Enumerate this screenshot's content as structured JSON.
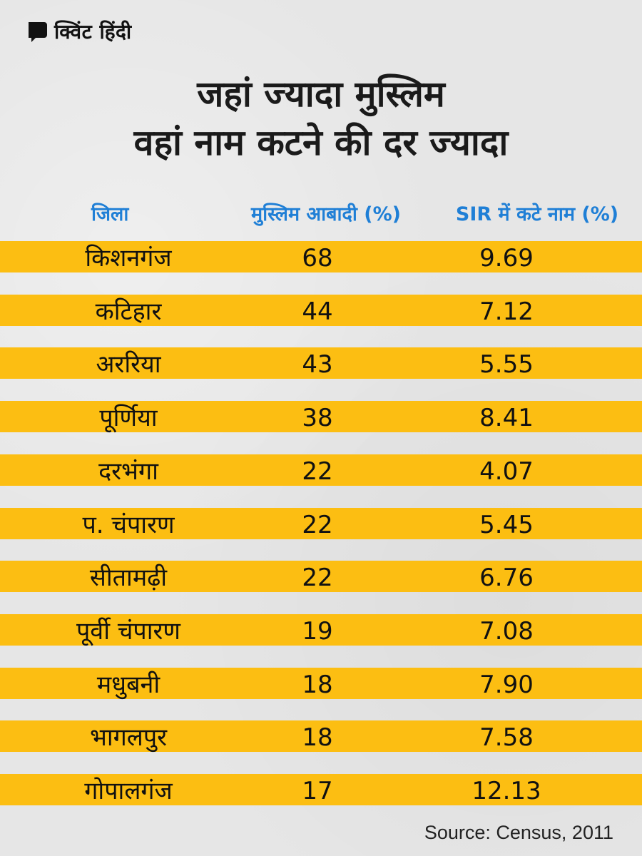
{
  "brand": {
    "logo_text": "क्विंट हिंदी",
    "logo_icon": "quint-q-mark-icon"
  },
  "title": {
    "line1": "जहां ज्यादा मुस्लिम",
    "line2": "वहां नाम कटने की दर ज्यादा"
  },
  "colors": {
    "row_band": "#fcbe12",
    "header_text": "#1f7fd6",
    "background": "#e6e6e6"
  },
  "chart_data": {
    "type": "table",
    "columns": [
      "जिला",
      "मुस्लिम आबादी (%)",
      "SIR में कटे नाम (%)"
    ],
    "rows": [
      [
        "किशनगंज",
        "68",
        "9.69"
      ],
      [
        "कटिहार",
        "44",
        "7.12"
      ],
      [
        "अररिया",
        "43",
        "5.55"
      ],
      [
        "पूर्णिया",
        "38",
        "8.41"
      ],
      [
        "दरभंगा",
        "22",
        "4.07"
      ],
      [
        "प. चंपारण",
        "22",
        "5.45"
      ],
      [
        "सीतामढ़ी",
        "22",
        "6.76"
      ],
      [
        "पूर्वी चंपारण",
        "19",
        "7.08"
      ],
      [
        "मधुबनी",
        "18",
        "7.90"
      ],
      [
        "भागलपुर",
        "18",
        "7.58"
      ],
      [
        "गोपालगंज",
        "17",
        "12.13"
      ]
    ]
  },
  "source": "Source: Census, 2011"
}
